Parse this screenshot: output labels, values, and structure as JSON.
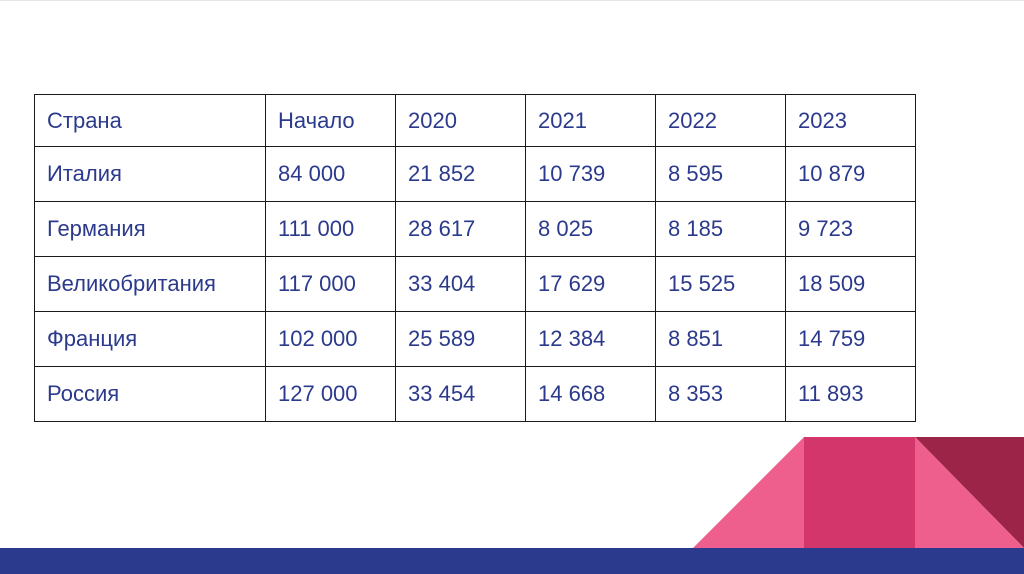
{
  "colors": {
    "text": "#2b3a8c",
    "border": "#1a1a1a",
    "bar": "#2b3a8c",
    "pink_light": "#ef5f8d",
    "pink_mid": "#d2366a",
    "maroon": "#9b2448"
  },
  "table": {
    "header": [
      "Страна",
      "Начало",
      "2020",
      "2021",
      "2022",
      "2023"
    ],
    "rows": [
      [
        "Италия",
        "84 000",
        "21 852",
        "10 739",
        "8 595",
        "10 879"
      ],
      [
        "Германия",
        "111 000",
        "28 617",
        "8 025",
        "8 185",
        "9 723"
      ],
      [
        "Великобритания",
        "117 000",
        "33 404",
        "17 629",
        "15 525",
        "18 509"
      ],
      [
        "Франция",
        "102 000",
        "25 589",
        "12 384",
        "8 851",
        "14 759"
      ],
      [
        "Россия",
        "127 000",
        "33 454",
        "14 668",
        "8 353",
        "11 893"
      ]
    ]
  }
}
